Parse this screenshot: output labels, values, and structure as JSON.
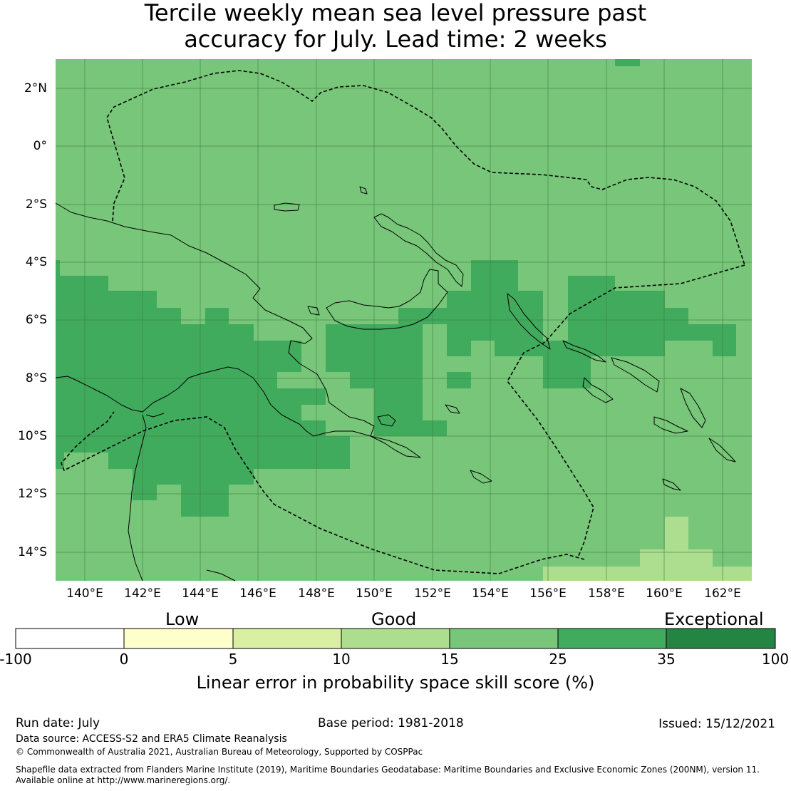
{
  "title": {
    "line1": "Tercile weekly mean sea level pressure past",
    "line2": "accuracy for July. Lead time: 2 weeks"
  },
  "map": {
    "lat_labels": [
      "2°N",
      "0°",
      "2°S",
      "4°S",
      "6°S",
      "8°S",
      "10°S",
      "12°S",
      "14°S"
    ],
    "lon_labels": [
      "140°E",
      "142°E",
      "144°E",
      "146°E",
      "148°E",
      "150°E",
      "152°E",
      "154°E",
      "156°E",
      "158°E",
      "160°E",
      "162°E"
    ],
    "lon_range": [
      139,
      163
    ],
    "lat_range": [
      -15,
      3
    ],
    "colors": {
      "cat_15_25": "#78c679",
      "cat_25_35": "#41ab5d",
      "cat_10_15": "#addd8e",
      "grid": "#3d7a3f",
      "coast": "#000000"
    }
  },
  "colorbar": {
    "category_labels": [
      "Low",
      "Good",
      "Exceptional"
    ],
    "tick_labels": [
      "-100",
      "0",
      "5",
      "10",
      "15",
      "25",
      "35",
      "100"
    ],
    "colors": [
      "#ffffff",
      "#ffffcc",
      "#d9f0a3",
      "#addd8e",
      "#78c679",
      "#41ab5d",
      "#238443"
    ],
    "label": "Linear error in probability space skill score (%)"
  },
  "footer": {
    "run_date": "Run date: July",
    "base_period": "Base period: 1981-2018",
    "issued": "Issued: 15/12/2021",
    "data_source": "Data source: ACCESS-S2 and ERA5 Climate Reanalysis",
    "copyright": "© Commonwealth of Australia 2021, Australian Bureau of Meteorology, Supported by COSPPac",
    "shapefile_line1": "Shapefile data extracted from Flanders Marine Institute (2019), Maritime Boundaries Geodatabase: Maritime Boundaries and Exclusive Economic Zones (200NM), version 11.",
    "shapefile_line2": "Available online at http://www.marineregions.org/."
  }
}
